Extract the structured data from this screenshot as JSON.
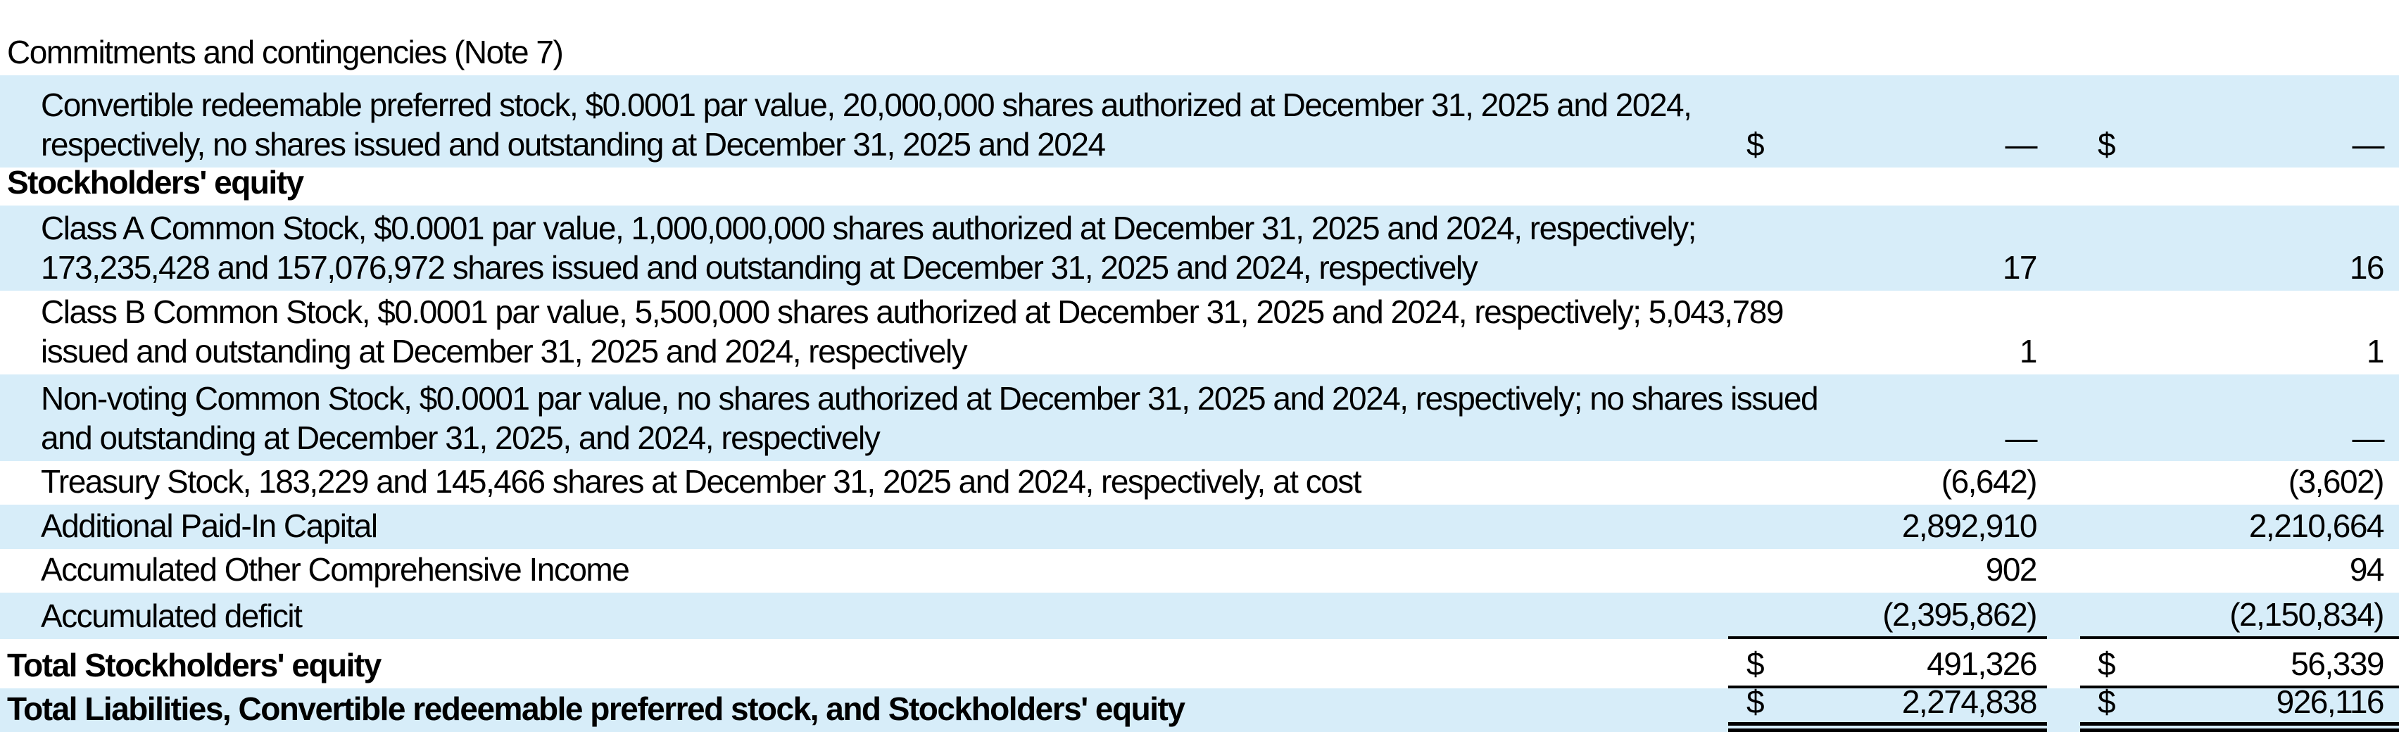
{
  "colors": {
    "row_highlight": "#d7edf9",
    "rule": "#000000",
    "text": "#000000"
  },
  "table": {
    "rows": [
      {
        "name": "commitments-and-contingencies",
        "label_lines": [
          "Commitments and contingencies (Note 7)"
        ],
        "indent": false,
        "bold": false,
        "highlight": false,
        "d1": "",
        "v1": "",
        "d2": "",
        "v2": "",
        "rule": "none"
      },
      {
        "name": "convertible-redeemable-preferred-stock",
        "label_lines": [
          "Convertible redeemable preferred stock, $0.0001 par value, 20,000,000 shares authorized at December 31, 2025 and 2024,",
          "respectively, no shares issued and outstanding at December 31, 2025 and 2024"
        ],
        "indent": true,
        "bold": false,
        "highlight": true,
        "d1": "$",
        "v1": "—",
        "d2": "$",
        "v2": "—",
        "rule": "none"
      },
      {
        "name": "stockholders-equity-header",
        "label_lines": [
          "Stockholders' equity"
        ],
        "indent": false,
        "bold": true,
        "highlight": false,
        "d1": "",
        "v1": "",
        "d2": "",
        "v2": "",
        "rule": "none"
      },
      {
        "name": "class-a-common-stock",
        "label_lines": [
          "Class A Common Stock, $0.0001 par value, 1,000,000,000 shares authorized at December 31, 2025 and 2024, respectively;",
          "173,235,428 and 157,076,972 shares issued and outstanding at December 31, 2025 and 2024, respectively"
        ],
        "indent": true,
        "bold": false,
        "highlight": true,
        "d1": "",
        "v1": "17",
        "d2": "",
        "v2": "16",
        "rule": "none"
      },
      {
        "name": "class-b-common-stock",
        "label_lines": [
          "Class B Common Stock, $0.0001 par value, 5,500,000 shares authorized at December 31, 2025 and 2024, respectively; 5,043,789",
          "issued and outstanding at December 31, 2025 and 2024, respectively"
        ],
        "indent": true,
        "bold": false,
        "highlight": false,
        "d1": "",
        "v1": "1",
        "d2": "",
        "v2": "1",
        "rule": "none"
      },
      {
        "name": "non-voting-common-stock",
        "label_lines": [
          "Non-voting Common Stock, $0.0001 par value, no shares authorized at December 31, 2025 and 2024, respectively; no shares issued",
          "and outstanding at December 31, 2025, and 2024, respectively"
        ],
        "indent": true,
        "bold": false,
        "highlight": true,
        "d1": "",
        "v1": "—",
        "d2": "",
        "v2": "—",
        "rule": "none"
      },
      {
        "name": "treasury-stock",
        "label_lines": [
          "Treasury Stock, 183,229 and 145,466 shares at December 31, 2025 and 2024, respectively, at cost"
        ],
        "indent": true,
        "bold": false,
        "highlight": false,
        "d1": "",
        "v1": "(6,642)",
        "d2": "",
        "v2": "(3,602)",
        "rule": "none"
      },
      {
        "name": "additional-paid-in-capital",
        "label_lines": [
          "Additional Paid-In Capital"
        ],
        "indent": true,
        "bold": false,
        "highlight": true,
        "d1": "",
        "v1": "2,892,910",
        "d2": "",
        "v2": "2,210,664",
        "rule": "none"
      },
      {
        "name": "accumulated-other-comprehensive-income",
        "label_lines": [
          "Accumulated Other Comprehensive Income"
        ],
        "indent": true,
        "bold": false,
        "highlight": false,
        "d1": "",
        "v1": "902",
        "d2": "",
        "v2": "94",
        "rule": "none"
      },
      {
        "name": "accumulated-deficit",
        "label_lines": [
          "Accumulated deficit"
        ],
        "indent": true,
        "bold": false,
        "highlight": true,
        "d1": "",
        "v1": "(2,395,862)",
        "d2": "",
        "v2": "(2,150,834)",
        "rule": "single"
      },
      {
        "name": "total-stockholders-equity",
        "label_lines": [
          "Total Stockholders' equity"
        ],
        "indent": false,
        "bold": true,
        "highlight": false,
        "d1": "$",
        "v1": "491,326",
        "d2": "$",
        "v2": "56,339",
        "rule": "single"
      },
      {
        "name": "total-liabilities-preferred-stock-and-stockholders-equity",
        "label_lines": [
          "Total Liabilities, Convertible redeemable preferred stock, and Stockholders' equity"
        ],
        "indent": false,
        "bold": true,
        "highlight": true,
        "d1": "$",
        "v1": "2,274,838",
        "d2": "$",
        "v2": "926,116",
        "rule": "double"
      }
    ]
  }
}
